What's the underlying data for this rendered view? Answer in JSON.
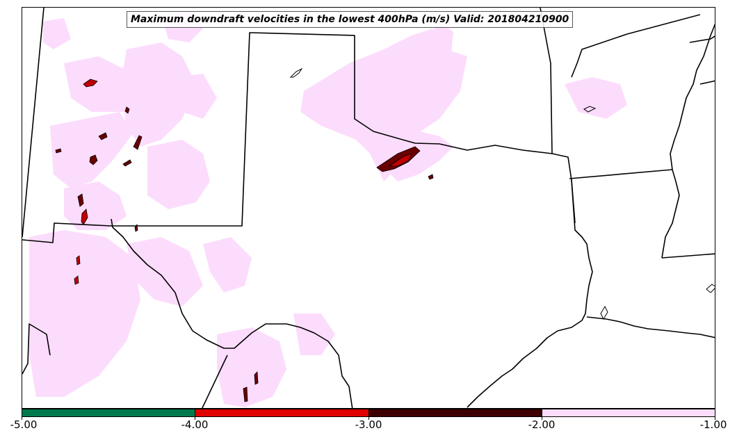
{
  "title": "Maximum downdraft velocities in the lowest 400hPa (m/s) Valid: 201804210900",
  "colorbar": {
    "ticks": [
      "-5.00",
      "-4.00",
      "-3.00",
      "-2.00",
      "-1.00"
    ],
    "bins": [
      {
        "from": -5.0,
        "to": -4.0,
        "color": "#007a4d"
      },
      {
        "from": -4.0,
        "to": -3.0,
        "color": "#e00000"
      },
      {
        "from": -3.0,
        "to": -2.0,
        "color": "#3d0000"
      },
      {
        "from": -2.0,
        "to": -1.0,
        "color": "#fcdcfc"
      }
    ]
  },
  "map": {
    "boundary_color": "#000000",
    "light_fill_color": "#fcdcfc",
    "dark_fill_color": "#6a0000",
    "red_fill_color": "#c00000"
  }
}
